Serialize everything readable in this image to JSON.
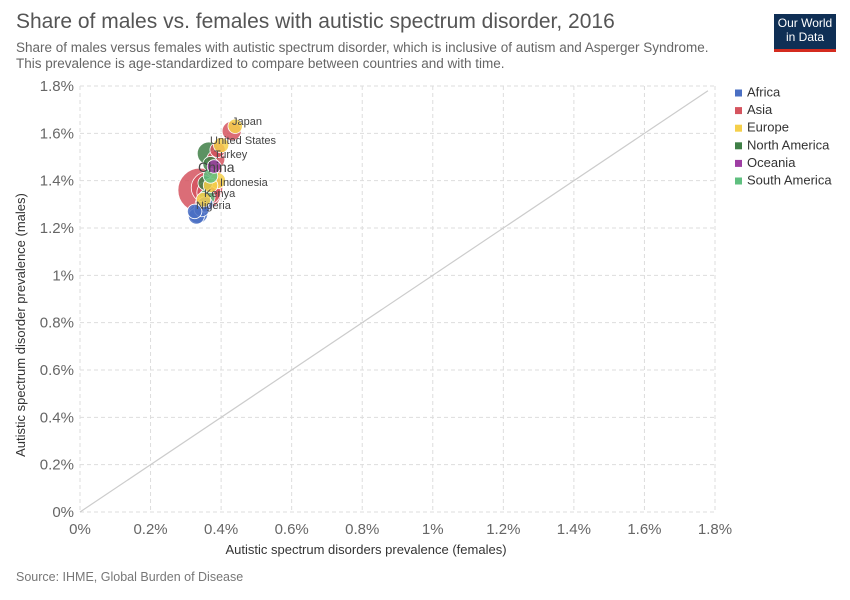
{
  "header": {
    "title": "Share of males vs. females with autistic spectrum disorder, 2016",
    "subtitle": "Share of males versus females with autistic spectrum disorder, which is inclusive of autism and Asperger Syndrome. This prevalence is age-standardized to compare between countries and with time.",
    "logo_line1": "Our World",
    "logo_line2": "in Data"
  },
  "footer": {
    "source": "Source: IHME, Global Burden of Disease"
  },
  "colors": {
    "Africa": "#4a6fc3",
    "Asia": "#d5545f",
    "Europe": "#f5cf4a",
    "North America": "#3f7f46",
    "Oceania": "#9e3da3",
    "South America": "#5fbf7f"
  },
  "chart_data": {
    "type": "scatter",
    "xlabel": "Autistic spectrum disorders prevalence (females)",
    "ylabel": "Autistic spectrum disorder prevalence (males)",
    "xlim": [
      0,
      1.8
    ],
    "ylim": [
      0,
      1.8
    ],
    "x_ticks": [
      "0%",
      "0.2%",
      "0.4%",
      "0.6%",
      "0.8%",
      "1%",
      "1.2%",
      "1.4%",
      "1.6%",
      "1.8%"
    ],
    "y_ticks": [
      "0%",
      "0.2%",
      "0.4%",
      "0.6%",
      "0.8%",
      "1%",
      "1.2%",
      "1.4%",
      "1.6%",
      "1.8%"
    ],
    "x_tick_values": [
      0,
      0.2,
      0.4,
      0.6,
      0.8,
      1.0,
      1.2,
      1.4,
      1.6,
      1.8
    ],
    "y_tick_values": [
      0,
      0.2,
      0.4,
      0.6,
      0.8,
      1.0,
      1.2,
      1.4,
      1.6,
      1.8
    ],
    "grid": true,
    "diagonal_line": true,
    "legend_position": "right",
    "legend": [
      "Africa",
      "Asia",
      "Europe",
      "North America",
      "Oceania",
      "South America"
    ],
    "points": [
      {
        "label": "China",
        "region": "Asia",
        "x": 0.34,
        "y": 1.36,
        "size": 1.0
      },
      {
        "label": "",
        "region": "Asia",
        "x": 0.36,
        "y": 1.37,
        "size": 0.45
      },
      {
        "label": "Indonesia",
        "region": "Asia",
        "x": 0.365,
        "y": 1.35,
        "size": 0.22
      },
      {
        "label": "Japan",
        "region": "Asia",
        "x": 0.43,
        "y": 1.61,
        "size": 0.12
      },
      {
        "label": "Turkey",
        "region": "Asia",
        "x": 0.385,
        "y": 1.49,
        "size": 0.1
      },
      {
        "label": "",
        "region": "Asia",
        "x": 0.39,
        "y": 1.53,
        "size": 0.06
      },
      {
        "label": "",
        "region": "Asia",
        "x": 0.38,
        "y": 1.45,
        "size": 0.07
      },
      {
        "label": "",
        "region": "Asia",
        "x": 0.35,
        "y": 1.3,
        "size": 0.08
      },
      {
        "label": "United States",
        "region": "North America",
        "x": 0.365,
        "y": 1.515,
        "size": 0.2
      },
      {
        "label": "",
        "region": "North America",
        "x": 0.37,
        "y": 1.47,
        "size": 0.06
      },
      {
        "label": "",
        "region": "North America",
        "x": 0.355,
        "y": 1.39,
        "size": 0.05
      },
      {
        "label": "",
        "region": "Europe",
        "x": 0.44,
        "y": 1.63,
        "size": 0.05
      },
      {
        "label": "",
        "region": "Europe",
        "x": 0.4,
        "y": 1.55,
        "size": 0.06
      },
      {
        "label": "",
        "region": "Europe",
        "x": 0.39,
        "y": 1.4,
        "size": 0.07
      },
      {
        "label": "",
        "region": "Europe",
        "x": 0.37,
        "y": 1.38,
        "size": 0.05
      },
      {
        "label": "",
        "region": "Europe",
        "x": 0.35,
        "y": 1.32,
        "size": 0.05
      },
      {
        "label": "Kenya",
        "region": "Africa",
        "x": 0.355,
        "y": 1.3,
        "size": 0.06
      },
      {
        "label": "Nigeria",
        "region": "Africa",
        "x": 0.335,
        "y": 1.26,
        "size": 0.12
      },
      {
        "label": "",
        "region": "Africa",
        "x": 0.33,
        "y": 1.25,
        "size": 0.07
      },
      {
        "label": "",
        "region": "Africa",
        "x": 0.345,
        "y": 1.28,
        "size": 0.06
      },
      {
        "label": "",
        "region": "Africa",
        "x": 0.325,
        "y": 1.27,
        "size": 0.05
      },
      {
        "label": "",
        "region": "South America",
        "x": 0.36,
        "y": 1.33,
        "size": 0.07
      },
      {
        "label": "",
        "region": "South America",
        "x": 0.37,
        "y": 1.42,
        "size": 0.05
      },
      {
        "label": "",
        "region": "Oceania",
        "x": 0.38,
        "y": 1.46,
        "size": 0.04
      }
    ]
  }
}
